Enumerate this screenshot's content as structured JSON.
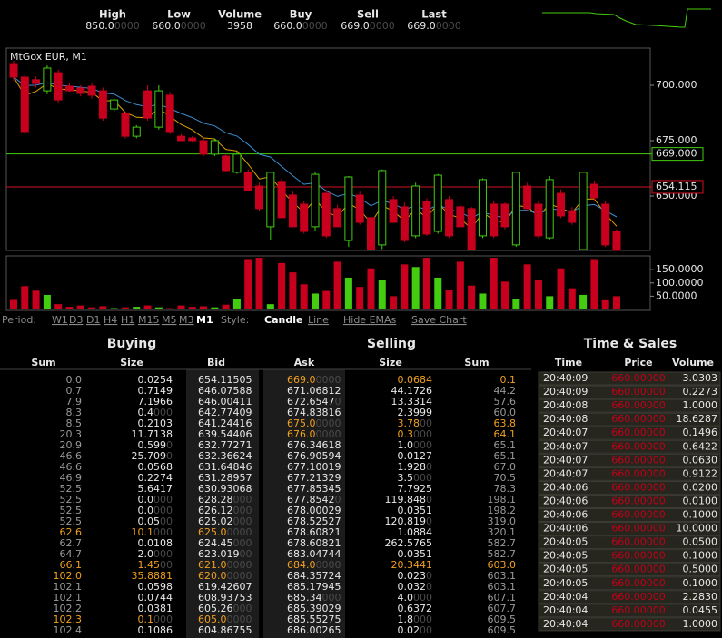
{
  "header": {
    "stats": [
      {
        "label": "High",
        "value": "850.00000"
      },
      {
        "label": "Low",
        "value": "660.00000"
      },
      {
        "label": "Volume",
        "value": "3958"
      },
      {
        "label": "Buy",
        "value": "660.00000"
      },
      {
        "label": "Sell",
        "value": "669.00000"
      },
      {
        "label": "Last",
        "value": "669.00000"
      }
    ]
  },
  "chart_data": [
    {
      "type": "candlestick",
      "title": "MtGox EUR, M1",
      "up_color": "#44cc11",
      "down_color": "#c8001e",
      "open": [
        709.8,
        703.7,
        702.5,
        697.5,
        705.7,
        699.6,
        698.8,
        699.6,
        697.5,
        689.3,
        687.3,
        677.0,
        697.5,
        681.1,
        695.5,
        677.0,
        676.2,
        675.0,
        668.9,
        668.0,
        660.7,
        660.7,
        654.5,
        636.1,
        656.6,
        650.4,
        646.3,
        636.1,
        651.2,
        644.3,
        629.9,
        650.4,
        640.2,
        627.9,
        648.4,
        645.1,
        632.0,
        647.5,
        634.0,
        648.4,
        645.1,
        644.3,
        632.0,
        646.3,
        646.3,
        627.9,
        654.5,
        646.3,
        631.1,
        651.2,
        643.4,
        625.8,
        655.3,
        646.3,
        634.0
      ],
      "high": [
        711,
        705,
        704,
        709,
        707,
        701,
        700,
        701,
        699,
        694,
        688,
        682,
        700,
        700,
        697,
        678,
        677,
        676,
        676,
        669,
        670,
        662,
        656,
        661,
        658,
        652,
        648,
        661,
        653,
        646,
        659,
        652,
        642,
        662,
        650,
        647,
        656,
        649,
        660,
        650,
        646,
        645,
        658,
        648,
        647,
        661,
        656,
        648,
        659,
        653,
        645,
        661,
        657,
        648,
        635
      ],
      "low": [
        702,
        678,
        699,
        696,
        692,
        697,
        695,
        694,
        684,
        688,
        676,
        676,
        684,
        680,
        678,
        675,
        674,
        668,
        668,
        661,
        660,
        652,
        643,
        630,
        640,
        636,
        633,
        634,
        631,
        636,
        627,
        637,
        625.6,
        626,
        638,
        629,
        631,
        632,
        633,
        631,
        636,
        625.6,
        631,
        631,
        635,
        627,
        643,
        631,
        630,
        640,
        637,
        625.6,
        648,
        627,
        625.4
      ],
      "close": [
        703.7,
        679.1,
        700.8,
        707.8,
        693.4,
        697.5,
        696.3,
        695.5,
        685.2,
        693.4,
        677.0,
        681.1,
        685.2,
        697.5,
        679.1,
        675.0,
        675.0,
        668.9,
        675.0,
        661.5,
        668.9,
        652.5,
        644.3,
        660.7,
        640.2,
        636.1,
        634.0,
        659.8,
        632.0,
        636.1,
        658.6,
        638.1,
        625.8,
        661.5,
        638.1,
        629.9,
        654.5,
        632.8,
        659.4,
        632.0,
        636.1,
        625.8,
        657.4,
        632.0,
        636.1,
        660.7,
        644.3,
        632.0,
        657.4,
        641.0,
        638.1,
        660.7,
        649.2,
        627.9,
        625.4
      ],
      "ylim": [
        625.4,
        716.8
      ],
      "yticks": [
        {
          "value": 700,
          "label": "700.000"
        },
        {
          "value": 675,
          "label": "675.000"
        },
        {
          "value": 650,
          "label": "650.000"
        }
      ],
      "price_lines": [
        {
          "value": 669,
          "label": "669.000",
          "color": "#44cc11"
        },
        {
          "value": 654.115,
          "label": "654.115",
          "color": "#d01020"
        }
      ]
    },
    {
      "type": "bar",
      "values": [
        36,
        88,
        71,
        55,
        20,
        10,
        15,
        8,
        12,
        5,
        8,
        10,
        15,
        8,
        5,
        15,
        10,
        12,
        8,
        18,
        40,
        190,
        195,
        20,
        175,
        140,
        95,
        60,
        70,
        180,
        120,
        85,
        155,
        110,
        50,
        170,
        160,
        195,
        120,
        75,
        180,
        90,
        60,
        195,
        105,
        40,
        170,
        110,
        50,
        155,
        80,
        55,
        190,
        35,
        50
      ],
      "ylim": [
        0,
        202
      ],
      "yticks": [
        {
          "value": 150,
          "label": "150.0000"
        },
        {
          "value": 100,
          "label": "100.0000"
        },
        {
          "value": 50,
          "label": "50.0000"
        }
      ]
    }
  ],
  "controls": {
    "period_label": "Period:",
    "periods": [
      "W1",
      "D3",
      "D1",
      "H4",
      "H1",
      "M15",
      "M5",
      "M3",
      "M1"
    ],
    "selected_period": "M1",
    "style_label": "Style:",
    "styles": [
      "Candle",
      "Line"
    ],
    "selected_style": "Candle",
    "hide_emas": "Hide EMAs",
    "save_chart": "Save Chart"
  },
  "buying": {
    "title": "Buying",
    "columns": [
      "Sum",
      "Size",
      "Bid"
    ],
    "highlight_rows": [
      14,
      17,
      18,
      22
    ],
    "rows": [
      [
        "0.0",
        "0.0254",
        "654.11505"
      ],
      [
        "0.7",
        "0.7149",
        "646.07588"
      ],
      [
        "7.9",
        "7.1966",
        "646.00411"
      ],
      [
        "8.3",
        "0.4000",
        "642.77409"
      ],
      [
        "8.5",
        "0.2103",
        "641.24416"
      ],
      [
        "20.3",
        "11.7138",
        "639.54406"
      ],
      [
        "20.9",
        "0.5990",
        "632.77271"
      ],
      [
        "46.6",
        "25.7090",
        "632.36624"
      ],
      [
        "46.6",
        "0.0568",
        "631.64846"
      ],
      [
        "46.9",
        "0.2274",
        "631.28957"
      ],
      [
        "52.5",
        "5.6417",
        "630.93068"
      ],
      [
        "52.5",
        "0.0000",
        "628.28000"
      ],
      [
        "52.5",
        "0.0000",
        "626.12000"
      ],
      [
        "52.5",
        "0.0500",
        "625.02000"
      ],
      [
        "62.6",
        "10.1000",
        "625.00000"
      ],
      [
        "62.7",
        "0.0108",
        "624.45000"
      ],
      [
        "64.7",
        "2.0000",
        "623.01900"
      ],
      [
        "66.1",
        "1.4500",
        "621.00000"
      ],
      [
        "102.0",
        "35.8881",
        "620.00000"
      ],
      [
        "102.1",
        "0.0598",
        "619.42607"
      ],
      [
        "102.1",
        "0.0744",
        "608.93753"
      ],
      [
        "102.2",
        "0.0381",
        "605.26000"
      ],
      [
        "102.3",
        "0.1000",
        "605.00000"
      ],
      [
        "102.4",
        "0.1086",
        "604.86755"
      ]
    ]
  },
  "selling": {
    "title": "Selling",
    "columns": [
      "Ask",
      "Size",
      "Sum"
    ],
    "highlight_rows": [
      0,
      4,
      5,
      17
    ],
    "rows": [
      [
        "669.00000",
        "0.0684",
        "0.1"
      ],
      [
        "671.06812",
        "44.1726",
        "44.2"
      ],
      [
        "672.65470",
        "13.3314",
        "57.6"
      ],
      [
        "674.83816",
        "2.3999",
        "60.0"
      ],
      [
        "675.00000",
        "3.7800",
        "63.8"
      ],
      [
        "676.00000",
        "0.3000",
        "64.1"
      ],
      [
        "676.34618",
        "1.0000",
        "65.1"
      ],
      [
        "676.90594",
        "0.0127",
        "65.1"
      ],
      [
        "677.10019",
        "1.9280",
        "67.0"
      ],
      [
        "677.21329",
        "3.5000",
        "70.5"
      ],
      [
        "677.85345",
        "7.7925",
        "78.3"
      ],
      [
        "677.85420",
        "119.8480",
        "198.1"
      ],
      [
        "678.00029",
        "0.0351",
        "198.2"
      ],
      [
        "678.52527",
        "120.8190",
        "319.0"
      ],
      [
        "678.60821",
        "1.0884",
        "320.1"
      ],
      [
        "678.60821",
        "262.5765",
        "582.7"
      ],
      [
        "683.04744",
        "0.0351",
        "582.7"
      ],
      [
        "684.00000",
        "20.3441",
        "603.0"
      ],
      [
        "684.35724",
        "0.0230",
        "603.1"
      ],
      [
        "685.17945",
        "0.0320",
        "603.1"
      ],
      [
        "685.34000",
        "4.0000",
        "607.1"
      ],
      [
        "685.39029",
        "0.6372",
        "607.7"
      ],
      [
        "685.55275",
        "1.8000",
        "609.5"
      ],
      [
        "686.00265",
        "0.0200",
        "609.5"
      ]
    ]
  },
  "time_sales": {
    "title": "Time & Sales",
    "columns": [
      "Time",
      "Price",
      "Volume"
    ],
    "rows": [
      [
        "20:40:09",
        "660.00000",
        "3.0303"
      ],
      [
        "20:40:09",
        "660.00000",
        "0.2273"
      ],
      [
        "20:40:08",
        "660.00000",
        "1.0000"
      ],
      [
        "20:40:08",
        "660.00000",
        "18.6287"
      ],
      [
        "20:40:07",
        "660.00000",
        "0.1496"
      ],
      [
        "20:40:07",
        "660.00000",
        "0.6422"
      ],
      [
        "20:40:07",
        "660.00000",
        "0.0630"
      ],
      [
        "20:40:07",
        "660.00000",
        "0.9122"
      ],
      [
        "20:40:06",
        "660.00000",
        "0.0200"
      ],
      [
        "20:40:06",
        "660.00000",
        "0.0100"
      ],
      [
        "20:40:06",
        "660.00000",
        "0.1000"
      ],
      [
        "20:40:06",
        "660.00000",
        "10.0000"
      ],
      [
        "20:40:05",
        "660.00000",
        "0.0500"
      ],
      [
        "20:40:05",
        "660.00000",
        "0.1000"
      ],
      [
        "20:40:05",
        "660.00000",
        "0.5000"
      ],
      [
        "20:40:05",
        "660.00000",
        "0.1000"
      ],
      [
        "20:40:04",
        "660.00000",
        "2.2830"
      ],
      [
        "20:40:04",
        "660.00000",
        "0.0455"
      ],
      [
        "20:40:04",
        "660.00000",
        "1.0000"
      ]
    ]
  }
}
